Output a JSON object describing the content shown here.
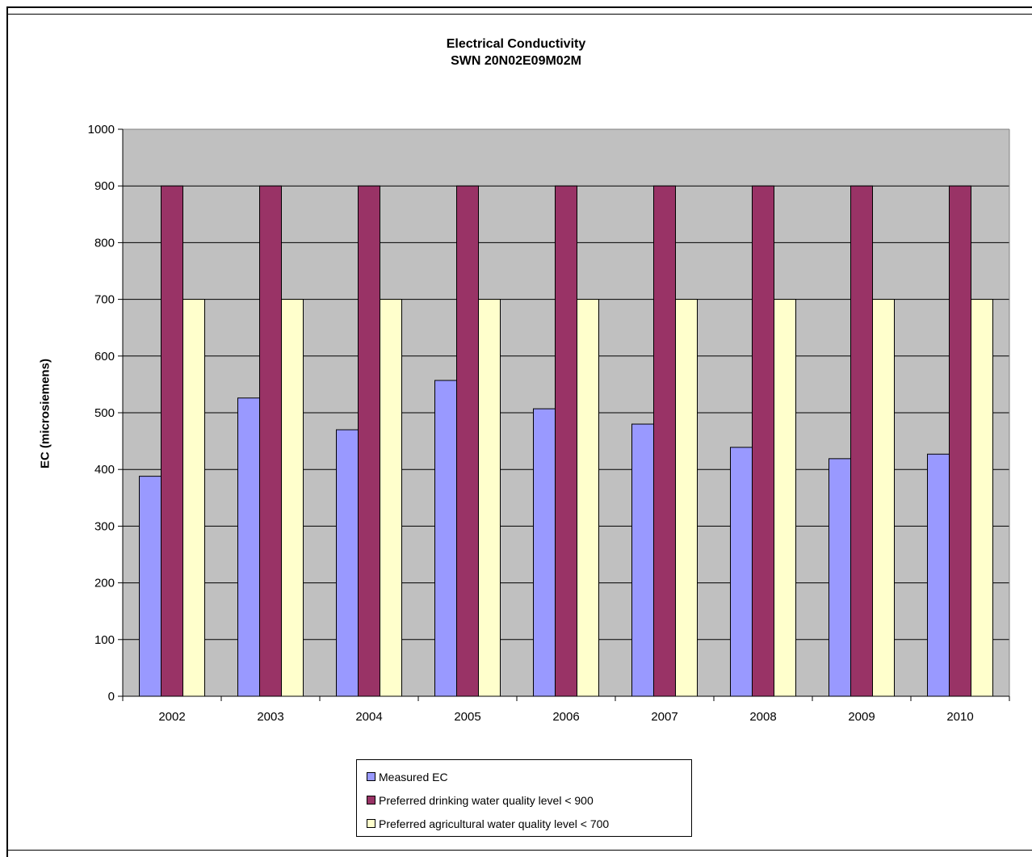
{
  "chart_data": {
    "type": "bar",
    "title": "Electrical Conductivity",
    "subtitle": "SWN 20N02E09M02M",
    "xlabel": "",
    "ylabel": "EC (microsiemens)",
    "ylim": [
      0,
      1000
    ],
    "yticks": [
      "0",
      "100",
      "200",
      "300",
      "400",
      "500",
      "600",
      "700",
      "800",
      "900",
      "1000"
    ],
    "ytick_values": [
      0,
      100,
      200,
      300,
      400,
      500,
      600,
      700,
      800,
      900,
      1000
    ],
    "categories": [
      "2002",
      "2003",
      "2004",
      "2005",
      "2006",
      "2007",
      "2008",
      "2009",
      "2010"
    ],
    "grid": true,
    "legend_position": "bottom",
    "plot_background": "#c0c0c0",
    "series": [
      {
        "name": "Measured EC",
        "color": "#9999ff",
        "values": [
          388,
          526,
          470,
          557,
          507,
          480,
          439,
          419,
          427
        ]
      },
      {
        "name": "Preferred drinking water quality level < 900",
        "color": "#993366",
        "values": [
          900,
          900,
          900,
          900,
          900,
          900,
          900,
          900,
          900
        ]
      },
      {
        "name": "Preferred agricultural water quality level < 700",
        "color": "#ffffcc",
        "values": [
          700,
          700,
          700,
          700,
          700,
          700,
          700,
          700,
          700
        ]
      }
    ]
  }
}
